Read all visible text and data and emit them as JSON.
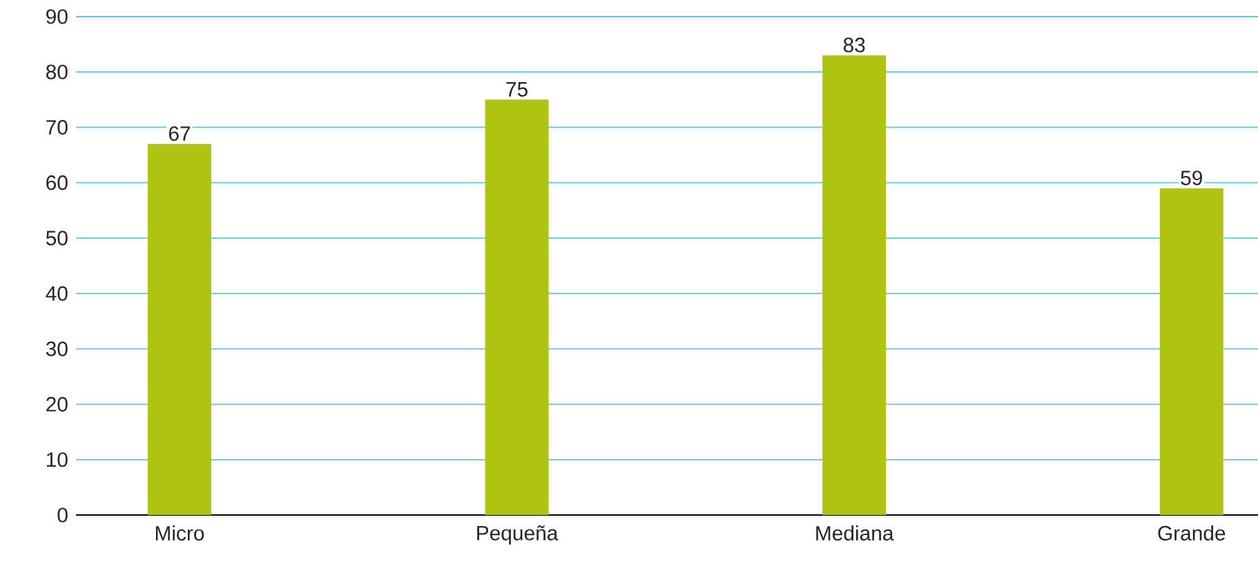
{
  "chart_data": {
    "type": "bar",
    "categories": [
      "Micro",
      "Pequeña",
      "Mediana",
      "Grande"
    ],
    "values": [
      67,
      75,
      83,
      59
    ],
    "color": "#afc312",
    "ylim": [
      0,
      90
    ],
    "yticks": [
      0,
      10,
      20,
      30,
      40,
      50,
      60,
      70,
      80,
      90
    ],
    "grid": "y",
    "data_labels": true
  }
}
